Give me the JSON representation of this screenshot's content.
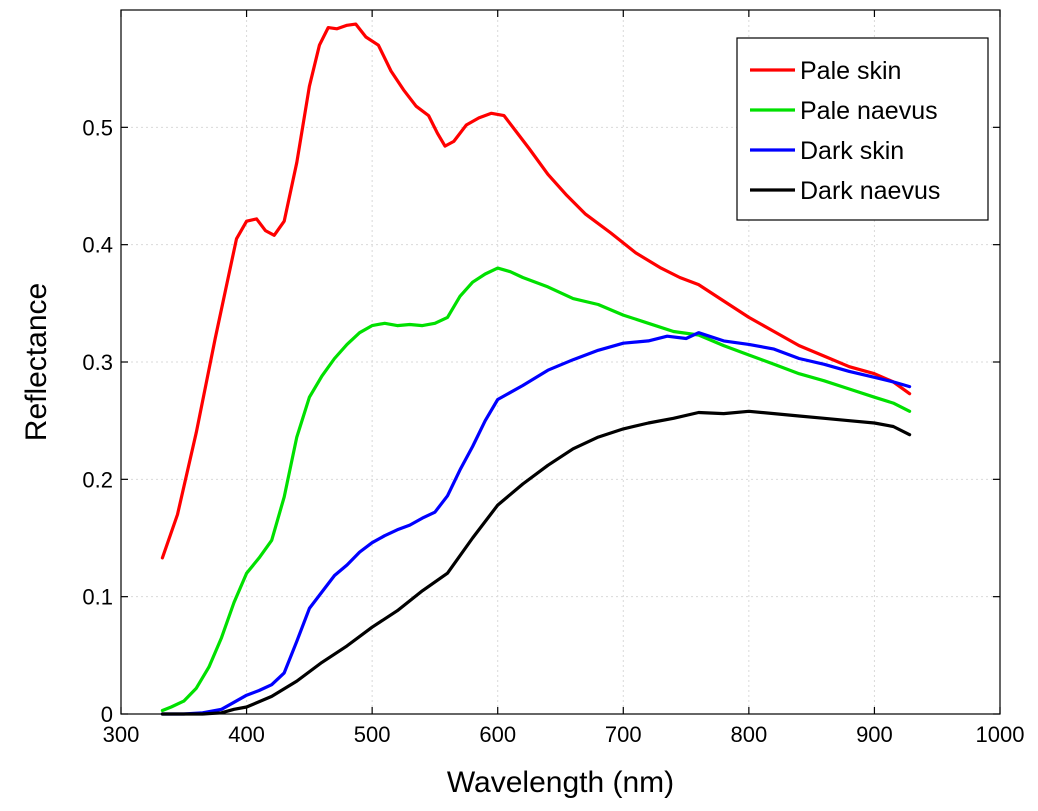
{
  "chart_data": {
    "type": "line",
    "xlabel": "Wavelength (nm)",
    "ylabel": "Reflectance",
    "xlim": [
      300,
      1000
    ],
    "ylim": [
      0,
      0.6
    ],
    "xticks": [
      300,
      400,
      500,
      600,
      700,
      800,
      900,
      1000
    ],
    "yticks": [
      0,
      0.1,
      0.2,
      0.3,
      0.4,
      0.5
    ],
    "ytick_labels": [
      "0",
      "0.1",
      "0.2",
      "0.3",
      "0.4",
      "0.5"
    ],
    "grid": true,
    "legend_position": "top-right",
    "series": [
      {
        "name": "Pale skin",
        "color": "#ff0000",
        "x": [
          333,
          345,
          360,
          375,
          385,
          392,
          400,
          408,
          415,
          422,
          430,
          440,
          450,
          458,
          465,
          472,
          480,
          487,
          495,
          505,
          515,
          525,
          535,
          545,
          552,
          558,
          565,
          575,
          585,
          595,
          605,
          615,
          625,
          640,
          655,
          670,
          690,
          710,
          730,
          745,
          760,
          780,
          800,
          820,
          840,
          860,
          880,
          900,
          915,
          928
        ],
        "y": [
          0.133,
          0.17,
          0.24,
          0.32,
          0.37,
          0.405,
          0.42,
          0.422,
          0.412,
          0.408,
          0.42,
          0.47,
          0.535,
          0.57,
          0.585,
          0.584,
          0.587,
          0.588,
          0.577,
          0.57,
          0.548,
          0.532,
          0.518,
          0.51,
          0.495,
          0.484,
          0.488,
          0.502,
          0.508,
          0.512,
          0.51,
          0.496,
          0.482,
          0.46,
          0.442,
          0.426,
          0.41,
          0.393,
          0.38,
          0.372,
          0.366,
          0.352,
          0.338,
          0.326,
          0.314,
          0.305,
          0.296,
          0.29,
          0.283,
          0.273
        ]
      },
      {
        "name": "Pale naevus",
        "color": "#00e000",
        "x": [
          333,
          340,
          350,
          360,
          370,
          380,
          390,
          400,
          410,
          420,
          430,
          440,
          450,
          460,
          470,
          480,
          490,
          500,
          510,
          520,
          530,
          540,
          550,
          560,
          570,
          580,
          590,
          600,
          610,
          620,
          640,
          660,
          680,
          700,
          720,
          740,
          760,
          780,
          800,
          820,
          840,
          860,
          880,
          900,
          915,
          928
        ],
        "y": [
          0.003,
          0.006,
          0.011,
          0.022,
          0.04,
          0.065,
          0.095,
          0.12,
          0.133,
          0.148,
          0.185,
          0.236,
          0.27,
          0.288,
          0.303,
          0.315,
          0.325,
          0.331,
          0.333,
          0.331,
          0.332,
          0.331,
          0.333,
          0.338,
          0.356,
          0.368,
          0.375,
          0.38,
          0.377,
          0.372,
          0.364,
          0.354,
          0.349,
          0.34,
          0.333,
          0.326,
          0.323,
          0.314,
          0.306,
          0.298,
          0.29,
          0.284,
          0.277,
          0.27,
          0.265,
          0.258
        ]
      },
      {
        "name": "Dark skin",
        "color": "#0000ff",
        "x": [
          333,
          350,
          365,
          380,
          390,
          400,
          410,
          420,
          430,
          440,
          450,
          460,
          470,
          480,
          490,
          500,
          510,
          520,
          530,
          540,
          550,
          560,
          570,
          580,
          590,
          600,
          620,
          640,
          660,
          680,
          700,
          720,
          735,
          750,
          760,
          780,
          800,
          820,
          840,
          860,
          880,
          900,
          915,
          928
        ],
        "y": [
          0.0,
          0.0,
          0.001,
          0.004,
          0.01,
          0.016,
          0.02,
          0.025,
          0.035,
          0.062,
          0.09,
          0.104,
          0.118,
          0.127,
          0.138,
          0.146,
          0.152,
          0.157,
          0.161,
          0.167,
          0.172,
          0.186,
          0.208,
          0.228,
          0.25,
          0.268,
          0.28,
          0.293,
          0.302,
          0.31,
          0.316,
          0.318,
          0.322,
          0.32,
          0.325,
          0.318,
          0.315,
          0.311,
          0.303,
          0.298,
          0.292,
          0.287,
          0.283,
          0.279
        ]
      },
      {
        "name": "Dark naevus",
        "color": "#000000",
        "x": [
          333,
          350,
          365,
          380,
          390,
          400,
          420,
          440,
          460,
          480,
          500,
          520,
          540,
          560,
          580,
          600,
          620,
          640,
          660,
          680,
          700,
          720,
          740,
          760,
          780,
          800,
          820,
          840,
          860,
          880,
          900,
          915,
          928
        ],
        "y": [
          0.0,
          0.0,
          0.0,
          0.001,
          0.004,
          0.006,
          0.015,
          0.028,
          0.044,
          0.058,
          0.074,
          0.088,
          0.105,
          0.12,
          0.15,
          0.178,
          0.196,
          0.212,
          0.226,
          0.236,
          0.243,
          0.248,
          0.252,
          0.257,
          0.256,
          0.258,
          0.256,
          0.254,
          0.252,
          0.25,
          0.248,
          0.245,
          0.238
        ]
      }
    ]
  }
}
